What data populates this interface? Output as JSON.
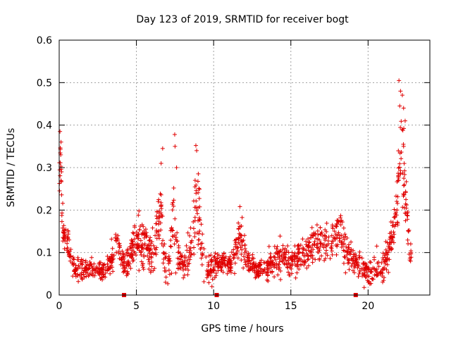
{
  "chart_data": {
    "type": "scatter",
    "title": "Day 123 of 2019, SRMTID for receiver bogt",
    "xlabel": "GPS time / hours",
    "ylabel": "SRMTID / TECUs",
    "xlim": [
      0,
      24
    ],
    "ylim": [
      0,
      0.6
    ],
    "x_ticks": [
      0,
      5,
      10,
      15,
      20
    ],
    "y_ticks": [
      0,
      0.1,
      0.2,
      0.3,
      0.4,
      0.5,
      0.6
    ],
    "x_tick_labels": [
      "0",
      "5",
      "10",
      "15",
      "20"
    ],
    "y_tick_labels": [
      "0",
      "0.1",
      "0.2",
      "0.3",
      "0.4",
      "0.5",
      "0.6"
    ],
    "grid": true,
    "marker": "+",
    "color": "#e00000",
    "profile": [
      [
        0.0,
        0.25,
        0.04
      ],
      [
        0.1,
        0.34,
        0.05
      ],
      [
        0.2,
        0.17,
        0.04
      ],
      [
        0.4,
        0.13,
        0.04
      ],
      [
        0.6,
        0.12,
        0.04
      ],
      [
        0.8,
        0.08,
        0.03
      ],
      [
        1.0,
        0.06,
        0.02
      ],
      [
        1.3,
        0.06,
        0.03
      ],
      [
        1.6,
        0.06,
        0.02
      ],
      [
        2.0,
        0.06,
        0.02
      ],
      [
        2.5,
        0.06,
        0.02
      ],
      [
        3.0,
        0.06,
        0.02
      ],
      [
        3.5,
        0.09,
        0.04
      ],
      [
        3.7,
        0.15,
        0.04
      ],
      [
        4.0,
        0.08,
        0.02
      ],
      [
        4.5,
        0.08,
        0.03
      ],
      [
        4.8,
        0.12,
        0.04
      ],
      [
        5.1,
        0.13,
        0.05
      ],
      [
        5.5,
        0.12,
        0.05
      ],
      [
        5.9,
        0.1,
        0.04
      ],
      [
        6.2,
        0.09,
        0.04
      ],
      [
        6.5,
        0.22,
        0.09
      ],
      [
        6.8,
        0.08,
        0.04
      ],
      [
        7.1,
        0.06,
        0.03
      ],
      [
        7.4,
        0.2,
        0.12
      ],
      [
        7.7,
        0.08,
        0.04
      ],
      [
        8.0,
        0.07,
        0.03
      ],
      [
        8.3,
        0.09,
        0.04
      ],
      [
        8.6,
        0.12,
        0.05
      ],
      [
        8.9,
        0.25,
        0.11
      ],
      [
        9.2,
        0.12,
        0.04
      ],
      [
        9.5,
        0.07,
        0.03
      ],
      [
        9.8,
        0.06,
        0.03
      ],
      [
        10.1,
        0.07,
        0.03
      ],
      [
        10.5,
        0.08,
        0.02
      ],
      [
        11.0,
        0.07,
        0.02
      ],
      [
        11.4,
        0.09,
        0.03
      ],
      [
        11.7,
        0.15,
        0.04
      ],
      [
        12.0,
        0.1,
        0.04
      ],
      [
        12.4,
        0.07,
        0.02
      ],
      [
        12.8,
        0.06,
        0.02
      ],
      [
        13.2,
        0.06,
        0.02
      ],
      [
        13.6,
        0.07,
        0.03
      ],
      [
        14.0,
        0.09,
        0.04
      ],
      [
        14.5,
        0.09,
        0.03
      ],
      [
        15.0,
        0.08,
        0.03
      ],
      [
        15.5,
        0.09,
        0.03
      ],
      [
        16.0,
        0.1,
        0.04
      ],
      [
        16.5,
        0.13,
        0.04
      ],
      [
        17.0,
        0.13,
        0.05
      ],
      [
        17.5,
        0.12,
        0.05
      ],
      [
        18.0,
        0.15,
        0.05
      ],
      [
        18.3,
        0.15,
        0.05
      ],
      [
        18.6,
        0.1,
        0.04
      ],
      [
        19.0,
        0.08,
        0.03
      ],
      [
        19.4,
        0.07,
        0.03
      ],
      [
        19.8,
        0.06,
        0.03
      ],
      [
        20.1,
        0.05,
        0.03
      ],
      [
        20.5,
        0.07,
        0.03
      ],
      [
        20.8,
        0.05,
        0.03
      ],
      [
        21.2,
        0.09,
        0.04
      ],
      [
        21.6,
        0.14,
        0.04
      ],
      [
        21.9,
        0.22,
        0.06
      ],
      [
        22.1,
        0.34,
        0.09
      ],
      [
        22.3,
        0.3,
        0.1
      ],
      [
        22.5,
        0.2,
        0.08
      ],
      [
        22.7,
        0.1,
        0.04
      ],
      [
        22.8,
        0.09,
        0.03
      ]
    ],
    "peaks": [
      [
        0.05,
        0.385
      ],
      [
        0.12,
        0.36
      ],
      [
        0.15,
        0.29
      ],
      [
        6.7,
        0.345
      ],
      [
        6.6,
        0.31
      ],
      [
        7.48,
        0.378
      ],
      [
        7.5,
        0.35
      ],
      [
        7.6,
        0.3
      ],
      [
        8.85,
        0.352
      ],
      [
        8.9,
        0.34
      ],
      [
        8.8,
        0.27
      ],
      [
        22.0,
        0.505
      ],
      [
        22.1,
        0.48
      ],
      [
        22.05,
        0.445
      ],
      [
        22.3,
        0.44
      ],
      [
        22.4,
        0.41
      ],
      [
        22.2,
        0.39
      ],
      [
        22.3,
        0.35
      ]
    ],
    "zero_markers": [
      4.2,
      10.2,
      19.2
    ]
  }
}
